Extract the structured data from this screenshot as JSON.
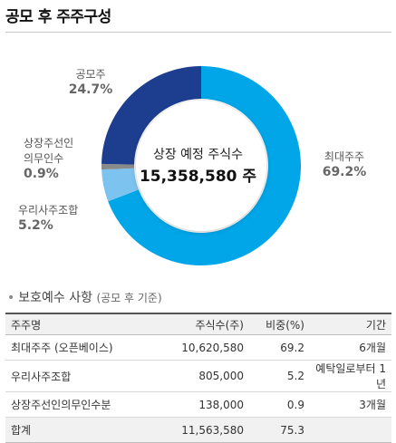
{
  "page": {
    "title": "공모 후 주주구성"
  },
  "chart_data": {
    "type": "pie",
    "center_title": "상장 예정 주식수",
    "center_value": "15,358,580 주",
    "slices": [
      {
        "name": "최대주주",
        "pct": 69.2,
        "label": "69.2%",
        "color": "#00a6e8"
      },
      {
        "name": "우리사주조합",
        "pct": 5.2,
        "label": "5.2%",
        "color": "#7cc3ef"
      },
      {
        "name": "상장주선인\n의무인수",
        "pct": 0.9,
        "label": "0.9%",
        "color": "#8a8a8a"
      },
      {
        "name": "공모주",
        "pct": 24.7,
        "label": "24.7%",
        "color": "#1d3d8f"
      }
    ]
  },
  "section": {
    "bullet": "•",
    "title": "보호예수 사항",
    "subtitle": "(공모 후 기준)"
  },
  "table": {
    "headers": {
      "name": "주주명",
      "shares": "주식수(주)",
      "ratio": "비중(%)",
      "period": "기간"
    },
    "rows": [
      {
        "name": "최대주주 (오픈베이스)",
        "shares": "10,620,580",
        "ratio": "69.2",
        "period": "6개월"
      },
      {
        "name": "우리사주조합",
        "shares": "805,000",
        "ratio": "5.2",
        "period": "예탁일로부터 1년"
      },
      {
        "name": "상장주선인의무인수분",
        "shares": "138,000",
        "ratio": "0.9",
        "period": "3개월"
      }
    ],
    "total": {
      "name": "합계",
      "shares": "11,563,580",
      "ratio": "75.3",
      "period": ""
    }
  }
}
